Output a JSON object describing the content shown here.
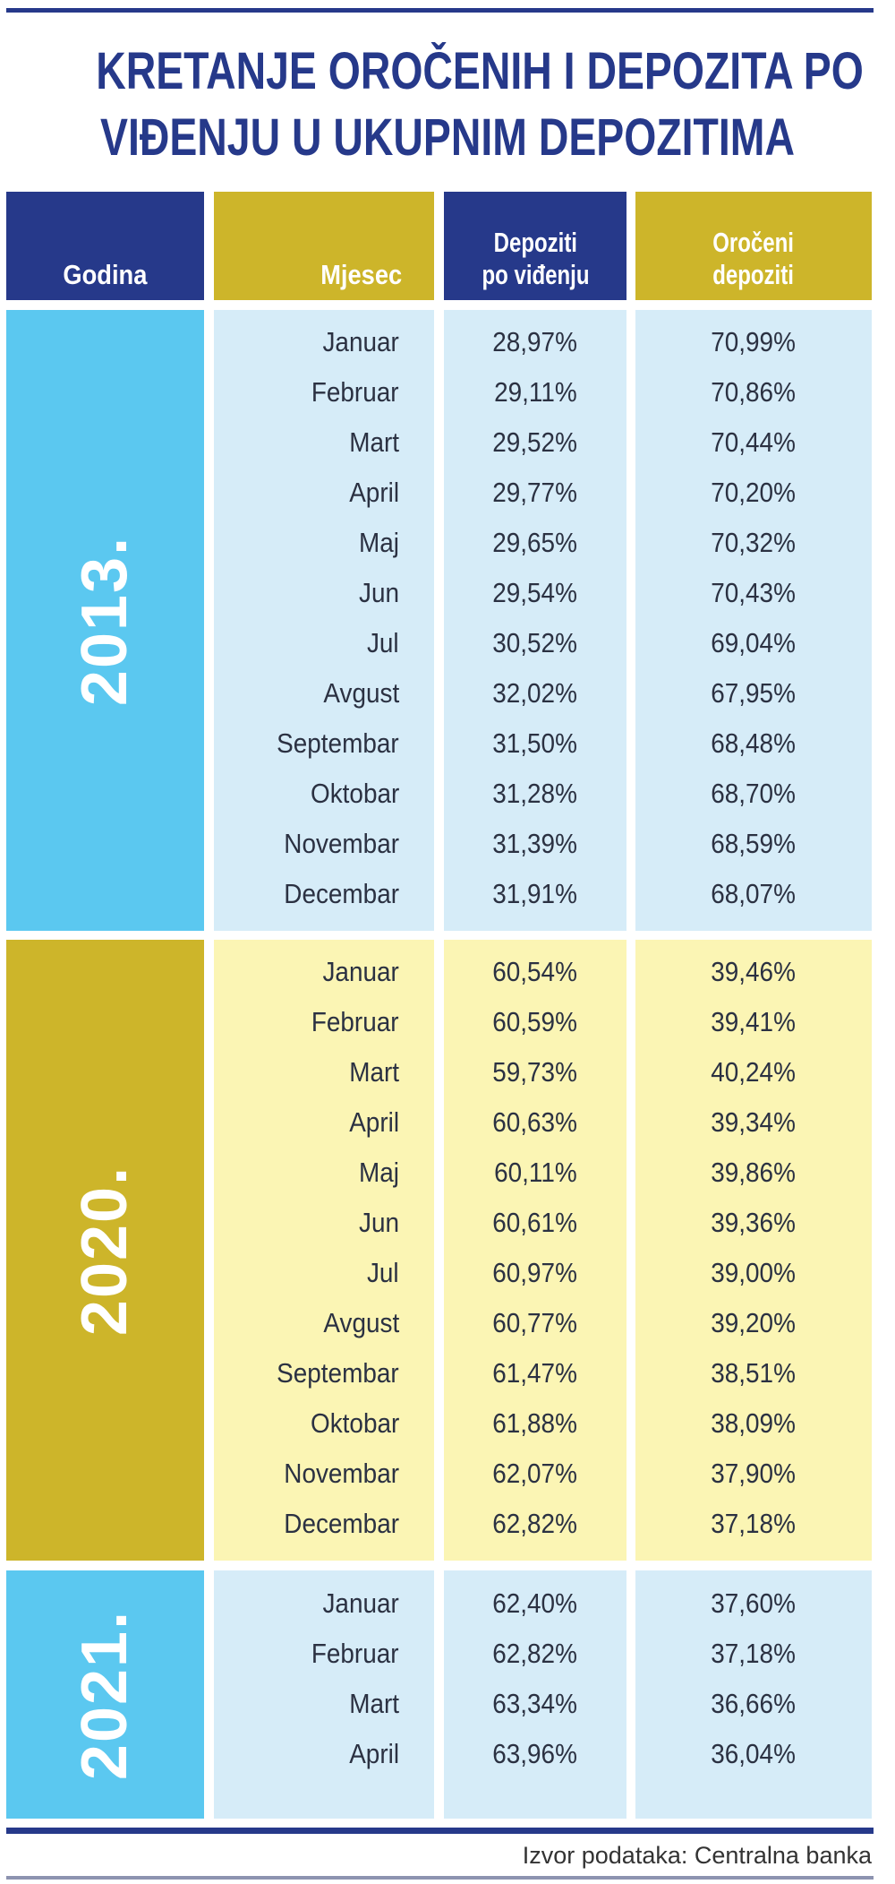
{
  "title": [
    "KRETANJE OROČENIH I DEPOZITA PO",
    "VIĐENJU U UKUPNIM DEPOZITIMA"
  ],
  "headers": {
    "year": "Godina",
    "month": "Mjesec",
    "demand": [
      "Depoziti",
      "po viđenju"
    ],
    "term": [
      "Oročeni",
      "depoziti"
    ]
  },
  "colors": {
    "navy": "#26398a",
    "gold": "#cdb52a",
    "light_blue": "#5bc8f0",
    "pale_blue": "#d6ecf8",
    "pale_yellow": "#fbf5b4"
  },
  "groups": [
    {
      "year": "2013.",
      "theme": "blue",
      "rows": [
        {
          "month": "Januar",
          "demand": "28,97%",
          "term": "70,99%"
        },
        {
          "month": "Februar",
          "demand": "29,11%",
          "term": "70,86%"
        },
        {
          "month": "Mart",
          "demand": "29,52%",
          "term": "70,44%"
        },
        {
          "month": "April",
          "demand": "29,77%",
          "term": "70,20%"
        },
        {
          "month": "Maj",
          "demand": "29,65%",
          "term": "70,32%"
        },
        {
          "month": "Jun",
          "demand": "29,54%",
          "term": "70,43%"
        },
        {
          "month": "Jul",
          "demand": "30,52%",
          "term": "69,04%"
        },
        {
          "month": "Avgust",
          "demand": "32,02%",
          "term": "67,95%"
        },
        {
          "month": "Septembar",
          "demand": "31,50%",
          "term": "68,48%"
        },
        {
          "month": "Oktobar",
          "demand": "31,28%",
          "term": "68,70%"
        },
        {
          "month": "Novembar",
          "demand": "31,39%",
          "term": "68,59%"
        },
        {
          "month": "Decembar",
          "demand": "31,91%",
          "term": "68,07%"
        }
      ]
    },
    {
      "year": "2020.",
      "theme": "gold",
      "rows": [
        {
          "month": "Januar",
          "demand": "60,54%",
          "term": "39,46%"
        },
        {
          "month": "Februar",
          "demand": "60,59%",
          "term": "39,41%"
        },
        {
          "month": "Mart",
          "demand": "59,73%",
          "term": "40,24%"
        },
        {
          "month": "April",
          "demand": "60,63%",
          "term": "39,34%"
        },
        {
          "month": "Maj",
          "demand": "60,11%",
          "term": "39,86%"
        },
        {
          "month": "Jun",
          "demand": "60,61%",
          "term": "39,36%"
        },
        {
          "month": "Jul",
          "demand": "60,97%",
          "term": "39,00%"
        },
        {
          "month": "Avgust",
          "demand": "60,77%",
          "term": "39,20%"
        },
        {
          "month": "Septembar",
          "demand": "61,47%",
          "term": "38,51%"
        },
        {
          "month": "Oktobar",
          "demand": "61,88%",
          "term": "38,09%"
        },
        {
          "month": "Novembar",
          "demand": "62,07%",
          "term": "37,90%"
        },
        {
          "month": "Decembar",
          "demand": "62,82%",
          "term": "37,18%"
        }
      ]
    },
    {
      "year": "2021.",
      "theme": "blue",
      "rows": [
        {
          "month": "Januar",
          "demand": "62,40%",
          "term": "37,60%"
        },
        {
          "month": "Februar",
          "demand": "62,82%",
          "term": "37,18%"
        },
        {
          "month": "Mart",
          "demand": "63,34%",
          "term": "36,66%"
        },
        {
          "month": "April",
          "demand": "63,96%",
          "term": "36,04%"
        }
      ]
    }
  ],
  "source": "Izvor podataka: Centralna banka"
}
